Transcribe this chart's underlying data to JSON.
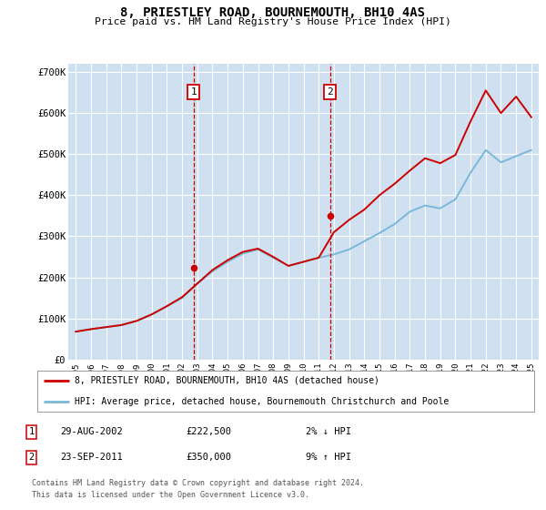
{
  "title": "8, PRIESTLEY ROAD, BOURNEMOUTH, BH10 4AS",
  "subtitle": "Price paid vs. HM Land Registry's House Price Index (HPI)",
  "background_color": "#ffffff",
  "plot_bg_color": "#cfe0f0",
  "grid_color": "#ffffff",
  "ylim": [
    0,
    720000
  ],
  "yticks": [
    0,
    100000,
    200000,
    300000,
    400000,
    500000,
    600000,
    700000
  ],
  "ytick_labels": [
    "£0",
    "£100K",
    "£200K",
    "£300K",
    "£400K",
    "£500K",
    "£600K",
    "£700K"
  ],
  "hpi_color": "#7ab8d9",
  "price_color": "#cc0000",
  "marker1_x": 7.75,
  "marker1_price": 222500,
  "marker2_x": 16.75,
  "marker2_price": 350000,
  "legend_line1": "8, PRIESTLEY ROAD, BOURNEMOUTH, BH10 4AS (detached house)",
  "legend_line2": "HPI: Average price, detached house, Bournemouth Christchurch and Poole",
  "marker1_date_str": "29-AUG-2002",
  "marker1_price_str": "£222,500",
  "marker1_pct": "2% ↓ HPI",
  "marker2_date_str": "23-SEP-2011",
  "marker2_price_str": "£350,000",
  "marker2_pct": "9% ↑ HPI",
  "footer1": "Contains HM Land Registry data © Crown copyright and database right 2024.",
  "footer2": "This data is licensed under the Open Government Licence v3.0.",
  "years": [
    "1995",
    "1996",
    "1997",
    "1998",
    "1999",
    "2000",
    "2001",
    "2002",
    "2003",
    "2004",
    "2005",
    "2006",
    "2007",
    "2008",
    "2009",
    "2010",
    "2011",
    "2012",
    "2013",
    "2014",
    "2015",
    "2016",
    "2017",
    "2018",
    "2019",
    "2020",
    "2021",
    "2022",
    "2023",
    "2024",
    "2025"
  ],
  "hpi_values": [
    68000,
    74000,
    79000,
    84000,
    94000,
    110000,
    130000,
    150000,
    185000,
    215000,
    238000,
    258000,
    268000,
    248000,
    228000,
    238000,
    248000,
    256000,
    268000,
    288000,
    308000,
    330000,
    360000,
    375000,
    368000,
    390000,
    455000,
    510000,
    480000,
    495000,
    510000
  ],
  "price_values": [
    68000,
    74000,
    79000,
    84000,
    94000,
    110000,
    130000,
    152000,
    185000,
    218000,
    242000,
    262000,
    270000,
    250000,
    228000,
    238000,
    248000,
    310000,
    340000,
    365000,
    400000,
    428000,
    460000,
    490000,
    478000,
    498000,
    580000,
    655000,
    600000,
    640000,
    590000
  ]
}
